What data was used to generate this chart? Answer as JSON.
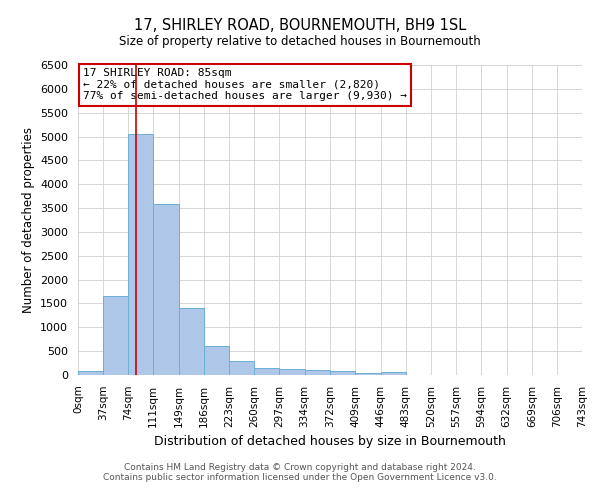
{
  "title": "17, SHIRLEY ROAD, BOURNEMOUTH, BH9 1SL",
  "subtitle": "Size of property relative to detached houses in Bournemouth",
  "xlabel": "Distribution of detached houses by size in Bournemouth",
  "ylabel": "Number of detached properties",
  "bar_color": "#aec6e8",
  "bar_edge_color": "#6aaed6",
  "bin_edges": [
    0,
    37,
    74,
    111,
    149,
    186,
    223,
    260,
    297,
    334,
    372,
    409,
    446,
    483,
    520,
    557,
    594,
    632,
    669,
    706,
    743
  ],
  "bar_heights": [
    75,
    1650,
    5060,
    3580,
    1400,
    600,
    300,
    150,
    125,
    100,
    75,
    45,
    55,
    0,
    0,
    0,
    0,
    0,
    0,
    0
  ],
  "property_line_x": 85,
  "property_line_color": "#cc0000",
  "annotation_line1": "17 SHIRLEY ROAD: 85sqm",
  "annotation_line2": "← 22% of detached houses are smaller (2,820)",
  "annotation_line3": "77% of semi-detached houses are larger (9,930) →",
  "annotation_box_color": "#cc0000",
  "ylim": [
    0,
    6500
  ],
  "yticks": [
    0,
    500,
    1000,
    1500,
    2000,
    2500,
    3000,
    3500,
    4000,
    4500,
    5000,
    5500,
    6000,
    6500
  ],
  "footer_line1": "Contains HM Land Registry data © Crown copyright and database right 2024.",
  "footer_line2": "Contains public sector information licensed under the Open Government Licence v3.0.",
  "grid_color": "#d0d0d0",
  "background_color": "#ffffff"
}
